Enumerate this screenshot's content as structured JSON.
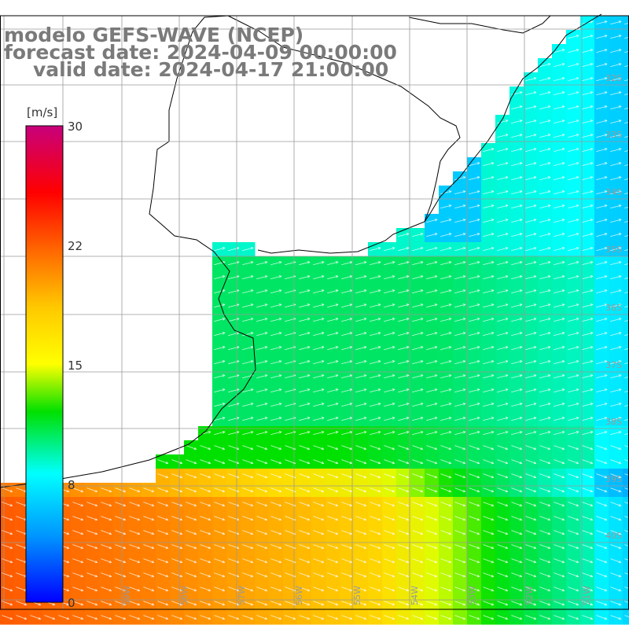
{
  "title": {
    "line1": "modelo GEFS-WAVE (NCEP)",
    "line2": "forecast date: 2024-04-09 00:00:00",
    "line3": "valid date: 2024-04-17 21:00:00"
  },
  "colorbar": {
    "unit": "[m/s]",
    "ticks": [
      "30",
      "22",
      "15",
      "8",
      "0"
    ],
    "tick_values": [
      30,
      22,
      15,
      8,
      0
    ],
    "colors": [
      "#0000ff",
      "#00a8ff",
      "#00ffff",
      "#00e000",
      "#ffff00",
      "#ff7f00",
      "#ff0000",
      "#c8007c"
    ]
  },
  "grid_labels": {
    "lat": [
      "32S",
      "33S",
      "34S",
      "35S",
      "36S",
      "37S",
      "38S",
      "39S",
      "40S"
    ],
    "lon": [
      "59W",
      "58W",
      "57W",
      "56W",
      "55W",
      "54W",
      "53W",
      "52W",
      "51W"
    ]
  },
  "map_colors": {
    "land": "#ffffff",
    "coast": "#000000",
    "grid": "#9a9a9a",
    "arrows": "#ffffff"
  }
}
